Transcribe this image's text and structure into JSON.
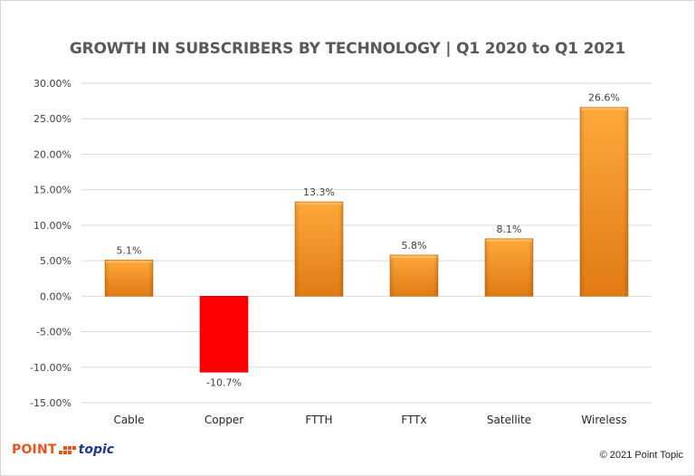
{
  "chart_data": {
    "type": "bar",
    "title": "GROWTH IN SUBSCRIBERS BY TECHNOLOGY | Q1 2020 to Q1 2021",
    "xlabel": "",
    "ylabel": "",
    "categories": [
      "Cable",
      "Copper",
      "FTTH",
      "FTTx",
      "Satellite",
      "Wireless"
    ],
    "values": [
      5.1,
      -10.7,
      13.3,
      5.8,
      8.1,
      26.6
    ],
    "data_labels": [
      "5.1%",
      "-10.7%",
      "13.3%",
      "5.8%",
      "8.1%",
      "26.6%"
    ],
    "ylim": [
      -15,
      30
    ],
    "yticks": [
      30,
      25,
      20,
      15,
      10,
      5,
      0,
      -5,
      -10,
      -15
    ],
    "ytick_labels": [
      "30.00%",
      "25.00%",
      "20.00%",
      "15.00%",
      "10.00%",
      "5.00%",
      "0.00%",
      "-5.00%",
      "-10.00%",
      "-15.00%"
    ],
    "grid": true,
    "legend": "none",
    "colors": {
      "positive": "#f7941d",
      "positive_dark": "#c96a12",
      "negative": "#ff0000",
      "gridline": "#d9d9d9",
      "text": "#404040"
    }
  },
  "footer": {
    "logo_point": "POINT",
    "logo_topic": "topic",
    "copyright": "© 2021 Point Topic"
  }
}
